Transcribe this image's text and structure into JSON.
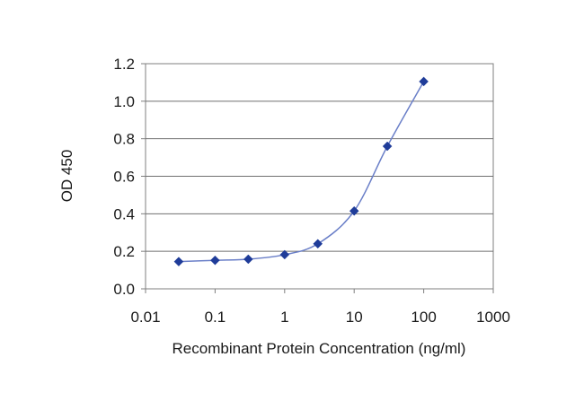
{
  "chart_data": {
    "type": "line",
    "title": "",
    "xlabel": "Recombinant Protein Concentration (ng/ml)",
    "ylabel": "OD 450",
    "x_scale": "log",
    "xlim": [
      0.01,
      1000
    ],
    "ylim": [
      0,
      1.2
    ],
    "x_ticks": [
      "0.01",
      "0.1",
      "1",
      "10",
      "100",
      "1000"
    ],
    "y_ticks": [
      "0.0",
      "0.2",
      "0.4",
      "0.6",
      "0.8",
      "1.0",
      "1.2"
    ],
    "grid": "horizontal",
    "legend": "none",
    "series": [
      {
        "x": [
          0.03,
          0.1,
          0.3,
          1,
          3,
          10,
          30,
          100
        ],
        "y": [
          0.145,
          0.152,
          0.158,
          0.182,
          0.24,
          0.415,
          0.76,
          1.105
        ],
        "color": "#1f3c99",
        "marker": "diamond"
      }
    ]
  }
}
